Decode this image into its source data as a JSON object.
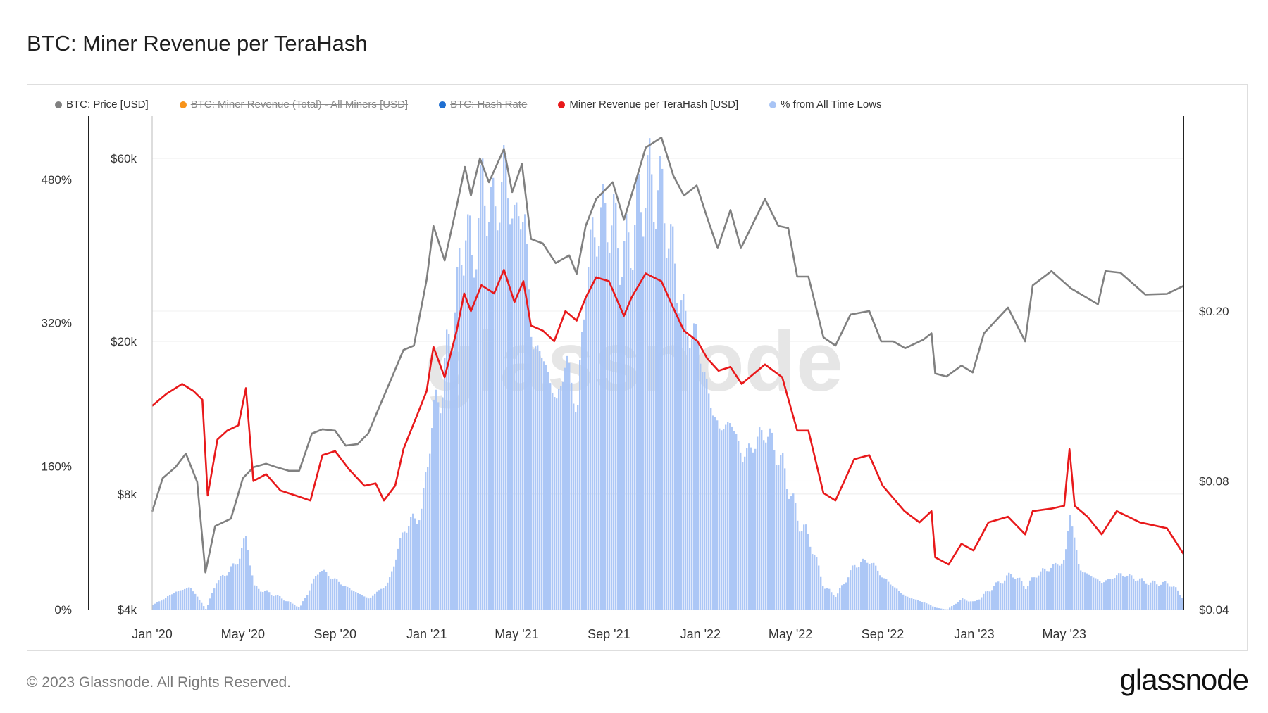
{
  "title": "BTC: Miner Revenue per TeraHash",
  "footer": "© 2023 Glassnode. All Rights Reserved.",
  "brand": "glassnode",
  "watermark": "glassnode",
  "legend": [
    {
      "label": "BTC: Price [USD]",
      "color": "#808080",
      "active": true
    },
    {
      "label": "BTC: Miner Revenue (Total) - All Miners [USD]",
      "color": "#f7931a",
      "active": false
    },
    {
      "label": "BTC: Hash Rate",
      "color": "#1f6fd1",
      "active": false
    },
    {
      "label": "Miner Revenue per TeraHash [USD]",
      "color": "#e8191b",
      "active": true
    },
    {
      "label": "% from All Time Lows",
      "color": "#a8c4f5",
      "active": true
    }
  ],
  "chart_data": {
    "type": "line",
    "title": "BTC: Miner Revenue per TeraHash",
    "x_range": [
      "2020-01-01",
      "2023-10-07"
    ],
    "x_ticks": [
      {
        "date": "2020-01-01",
        "label": "Jan '20"
      },
      {
        "date": "2020-05-01",
        "label": "May '20"
      },
      {
        "date": "2020-09-01",
        "label": "Sep '20"
      },
      {
        "date": "2021-01-01",
        "label": "Jan '21"
      },
      {
        "date": "2021-05-01",
        "label": "May '21"
      },
      {
        "date": "2021-09-01",
        "label": "Sep '21"
      },
      {
        "date": "2022-01-01",
        "label": "Jan '22"
      },
      {
        "date": "2022-05-01",
        "label": "May '22"
      },
      {
        "date": "2022-09-01",
        "label": "Sep '22"
      },
      {
        "date": "2023-01-01",
        "label": "Jan '23"
      },
      {
        "date": "2023-05-01",
        "label": "May '23"
      }
    ],
    "y_axes": {
      "pct": {
        "range": [
          0,
          480
        ],
        "scale": "linear",
        "ticks": [
          {
            "v": 0,
            "label": "0%"
          },
          {
            "v": 160,
            "label": "160%"
          },
          {
            "v": 320,
            "label": "320%"
          },
          {
            "v": 480,
            "label": "480%"
          }
        ]
      },
      "price": {
        "range": [
          4000,
          60000
        ],
        "scale": "log",
        "ticks": [
          {
            "v": 4000,
            "label": "$4k"
          },
          {
            "v": 8000,
            "label": "$8k"
          },
          {
            "v": 20000,
            "label": "$20k"
          },
          {
            "v": 60000,
            "label": "$60k"
          }
        ]
      },
      "revenue": {
        "range": [
          0.04,
          0.2
        ],
        "scale": "log",
        "ticks": [
          {
            "v": 0.04,
            "label": "$0.04"
          },
          {
            "v": 0.08,
            "label": "$0.08"
          },
          {
            "v": 0.2,
            "label": "$0.20"
          }
        ]
      }
    },
    "series": [
      {
        "name": "BTC: Price [USD]",
        "axis": "price",
        "color": "#808080",
        "kind": "line",
        "points": [
          [
            "2020-01-01",
            7200
          ],
          [
            "2020-01-15",
            8800
          ],
          [
            "2020-02-01",
            9400
          ],
          [
            "2020-02-15",
            10200
          ],
          [
            "2020-03-01",
            8600
          ],
          [
            "2020-03-12",
            5000
          ],
          [
            "2020-03-25",
            6600
          ],
          [
            "2020-04-15",
            6900
          ],
          [
            "2020-05-01",
            8800
          ],
          [
            "2020-05-15",
            9400
          ],
          [
            "2020-06-01",
            9600
          ],
          [
            "2020-06-15",
            9400
          ],
          [
            "2020-07-01",
            9200
          ],
          [
            "2020-07-15",
            9200
          ],
          [
            "2020-08-01",
            11500
          ],
          [
            "2020-08-15",
            11800
          ],
          [
            "2020-09-01",
            11700
          ],
          [
            "2020-09-15",
            10700
          ],
          [
            "2020-10-01",
            10800
          ],
          [
            "2020-10-15",
            11500
          ],
          [
            "2020-11-01",
            13800
          ],
          [
            "2020-11-15",
            16000
          ],
          [
            "2020-12-01",
            19000
          ],
          [
            "2020-12-15",
            19500
          ],
          [
            "2021-01-01",
            29000
          ],
          [
            "2021-01-10",
            40000
          ],
          [
            "2021-01-25",
            32500
          ],
          [
            "2021-02-10",
            45000
          ],
          [
            "2021-02-21",
            57000
          ],
          [
            "2021-03-01",
            48000
          ],
          [
            "2021-03-13",
            60000
          ],
          [
            "2021-03-25",
            52000
          ],
          [
            "2021-04-14",
            63500
          ],
          [
            "2021-04-25",
            49000
          ],
          [
            "2021-05-08",
            58000
          ],
          [
            "2021-05-20",
            37000
          ],
          [
            "2021-06-05",
            36000
          ],
          [
            "2021-06-22",
            32000
          ],
          [
            "2021-07-10",
            33500
          ],
          [
            "2021-07-20",
            30000
          ],
          [
            "2021-08-01",
            40000
          ],
          [
            "2021-08-15",
            47000
          ],
          [
            "2021-09-06",
            52000
          ],
          [
            "2021-09-21",
            41500
          ],
          [
            "2021-10-05",
            51000
          ],
          [
            "2021-10-20",
            64000
          ],
          [
            "2021-11-10",
            68000
          ],
          [
            "2021-11-26",
            54000
          ],
          [
            "2021-12-10",
            48000
          ],
          [
            "2021-12-27",
            51000
          ],
          [
            "2022-01-10",
            42000
          ],
          [
            "2022-01-24",
            35000
          ],
          [
            "2022-02-10",
            44000
          ],
          [
            "2022-02-24",
            35000
          ],
          [
            "2022-03-28",
            47000
          ],
          [
            "2022-04-15",
            40000
          ],
          [
            "2022-04-28",
            39500
          ],
          [
            "2022-05-10",
            29500
          ],
          [
            "2022-05-25",
            29500
          ],
          [
            "2022-06-14",
            20500
          ],
          [
            "2022-06-30",
            19500
          ],
          [
            "2022-07-20",
            23500
          ],
          [
            "2022-08-14",
            24000
          ],
          [
            "2022-08-30",
            20000
          ],
          [
            "2022-09-15",
            20000
          ],
          [
            "2022-10-01",
            19200
          ],
          [
            "2022-10-25",
            20200
          ],
          [
            "2022-11-05",
            21000
          ],
          [
            "2022-11-10",
            16500
          ],
          [
            "2022-11-25",
            16200
          ],
          [
            "2022-12-15",
            17300
          ],
          [
            "2022-12-30",
            16600
          ],
          [
            "2023-01-14",
            21000
          ],
          [
            "2023-02-15",
            24500
          ],
          [
            "2023-03-10",
            20000
          ],
          [
            "2023-03-20",
            28000
          ],
          [
            "2023-04-14",
            30500
          ],
          [
            "2023-05-10",
            27500
          ],
          [
            "2023-06-15",
            25000
          ],
          [
            "2023-06-25",
            30500
          ],
          [
            "2023-07-15",
            30200
          ],
          [
            "2023-08-17",
            26500
          ],
          [
            "2023-09-15",
            26600
          ],
          [
            "2023-10-07",
            27900
          ]
        ]
      },
      {
        "name": "Miner Revenue per TeraHash [USD]",
        "axis": "revenue",
        "color": "#e8191b",
        "kind": "line",
        "points": [
          [
            "2020-01-01",
            0.12
          ],
          [
            "2020-01-20",
            0.128
          ],
          [
            "2020-02-10",
            0.135
          ],
          [
            "2020-02-25",
            0.13
          ],
          [
            "2020-03-08",
            0.124
          ],
          [
            "2020-03-15",
            0.074
          ],
          [
            "2020-03-28",
            0.1
          ],
          [
            "2020-04-10",
            0.105
          ],
          [
            "2020-04-25",
            0.108
          ],
          [
            "2020-05-05",
            0.132
          ],
          [
            "2020-05-15",
            0.08
          ],
          [
            "2020-06-01",
            0.083
          ],
          [
            "2020-06-20",
            0.076
          ],
          [
            "2020-07-10",
            0.074
          ],
          [
            "2020-07-30",
            0.072
          ],
          [
            "2020-08-15",
            0.092
          ],
          [
            "2020-09-01",
            0.094
          ],
          [
            "2020-09-20",
            0.085
          ],
          [
            "2020-10-10",
            0.078
          ],
          [
            "2020-10-25",
            0.079
          ],
          [
            "2020-11-05",
            0.072
          ],
          [
            "2020-11-20",
            0.078
          ],
          [
            "2020-12-01",
            0.095
          ],
          [
            "2020-12-20",
            0.115
          ],
          [
            "2021-01-01",
            0.13
          ],
          [
            "2021-01-10",
            0.165
          ],
          [
            "2021-01-25",
            0.14
          ],
          [
            "2021-02-10",
            0.18
          ],
          [
            "2021-02-20",
            0.22
          ],
          [
            "2021-03-01",
            0.2
          ],
          [
            "2021-03-15",
            0.23
          ],
          [
            "2021-04-01",
            0.22
          ],
          [
            "2021-04-14",
            0.25
          ],
          [
            "2021-04-28",
            0.21
          ],
          [
            "2021-05-10",
            0.235
          ],
          [
            "2021-05-20",
            0.185
          ],
          [
            "2021-06-05",
            0.18
          ],
          [
            "2021-06-20",
            0.17
          ],
          [
            "2021-07-05",
            0.2
          ],
          [
            "2021-07-20",
            0.19
          ],
          [
            "2021-08-01",
            0.215
          ],
          [
            "2021-08-15",
            0.24
          ],
          [
            "2021-09-01",
            0.235
          ],
          [
            "2021-09-21",
            0.195
          ],
          [
            "2021-10-01",
            0.215
          ],
          [
            "2021-10-20",
            0.245
          ],
          [
            "2021-11-10",
            0.235
          ],
          [
            "2021-11-25",
            0.205
          ],
          [
            "2021-12-10",
            0.18
          ],
          [
            "2021-12-28",
            0.17
          ],
          [
            "2022-01-10",
            0.155
          ],
          [
            "2022-01-25",
            0.145
          ],
          [
            "2022-02-10",
            0.148
          ],
          [
            "2022-02-25",
            0.135
          ],
          [
            "2022-03-28",
            0.15
          ],
          [
            "2022-04-20",
            0.14
          ],
          [
            "2022-05-10",
            0.105
          ],
          [
            "2022-05-25",
            0.105
          ],
          [
            "2022-06-14",
            0.075
          ],
          [
            "2022-06-30",
            0.072
          ],
          [
            "2022-07-25",
            0.09
          ],
          [
            "2022-08-14",
            0.092
          ],
          [
            "2022-09-01",
            0.078
          ],
          [
            "2022-09-30",
            0.068
          ],
          [
            "2022-10-20",
            0.064
          ],
          [
            "2022-11-05",
            0.068
          ],
          [
            "2022-11-10",
            0.053
          ],
          [
            "2022-11-28",
            0.051
          ],
          [
            "2022-12-15",
            0.057
          ],
          [
            "2022-12-31",
            0.055
          ],
          [
            "2023-01-20",
            0.064
          ],
          [
            "2023-02-15",
            0.066
          ],
          [
            "2023-03-10",
            0.06
          ],
          [
            "2023-03-20",
            0.068
          ],
          [
            "2023-04-15",
            0.069
          ],
          [
            "2023-05-01",
            0.07
          ],
          [
            "2023-05-08",
            0.095
          ],
          [
            "2023-05-15",
            0.07
          ],
          [
            "2023-06-01",
            0.066
          ],
          [
            "2023-06-20",
            0.06
          ],
          [
            "2023-07-10",
            0.068
          ],
          [
            "2023-08-10",
            0.064
          ],
          [
            "2023-09-15",
            0.062
          ],
          [
            "2023-10-07",
            0.054
          ]
        ]
      },
      {
        "name": "% from All Time Lows",
        "axis": "pct",
        "color": "#a8c4f5",
        "kind": "area",
        "points": [
          [
            "2020-01-01",
            5
          ],
          [
            "2020-02-01",
            20
          ],
          [
            "2020-02-20",
            25
          ],
          [
            "2020-03-12",
            0
          ],
          [
            "2020-03-25",
            30
          ],
          [
            "2020-04-20",
            50
          ],
          [
            "2020-05-05",
            80
          ],
          [
            "2020-05-15",
            25
          ],
          [
            "2020-06-15",
            15
          ],
          [
            "2020-07-15",
            2
          ],
          [
            "2020-08-10",
            45
          ],
          [
            "2020-09-15",
            25
          ],
          [
            "2020-10-15",
            12
          ],
          [
            "2020-11-10",
            30
          ],
          [
            "2020-12-01",
            90
          ],
          [
            "2020-12-25",
            110
          ],
          [
            "2021-01-05",
            200
          ],
          [
            "2021-01-20",
            250
          ],
          [
            "2021-02-10",
            350
          ],
          [
            "2021-02-21",
            440
          ],
          [
            "2021-03-01",
            380
          ],
          [
            "2021-03-15",
            470
          ],
          [
            "2021-04-01",
            440
          ],
          [
            "2021-04-14",
            490
          ],
          [
            "2021-04-28",
            430
          ],
          [
            "2021-05-10",
            450
          ],
          [
            "2021-05-20",
            300
          ],
          [
            "2021-06-05",
            280
          ],
          [
            "2021-06-22",
            230
          ],
          [
            "2021-07-05",
            280
          ],
          [
            "2021-07-20",
            220
          ],
          [
            "2021-08-01",
            380
          ],
          [
            "2021-08-15",
            430
          ],
          [
            "2021-09-01",
            440
          ],
          [
            "2021-09-20",
            390
          ],
          [
            "2021-10-01",
            420
          ],
          [
            "2021-10-20",
            480
          ],
          [
            "2021-11-10",
            460
          ],
          [
            "2021-11-25",
            390
          ],
          [
            "2021-12-10",
            320
          ],
          [
            "2021-12-28",
            300
          ],
          [
            "2022-01-10",
            240
          ],
          [
            "2022-01-25",
            200
          ],
          [
            "2022-02-10",
            210
          ],
          [
            "2022-02-25",
            170
          ],
          [
            "2022-03-28",
            200
          ],
          [
            "2022-04-20",
            160
          ],
          [
            "2022-05-10",
            100
          ],
          [
            "2022-05-25",
            80
          ],
          [
            "2022-06-14",
            25
          ],
          [
            "2022-06-30",
            15
          ],
          [
            "2022-07-25",
            50
          ],
          [
            "2022-08-14",
            55
          ],
          [
            "2022-09-01",
            35
          ],
          [
            "2022-09-30",
            15
          ],
          [
            "2022-10-25",
            8
          ],
          [
            "2022-11-10",
            2
          ],
          [
            "2022-11-25",
            0
          ],
          [
            "2022-12-15",
            12
          ],
          [
            "2022-12-31",
            8
          ],
          [
            "2023-01-25",
            25
          ],
          [
            "2023-02-20",
            40
          ],
          [
            "2023-03-10",
            25
          ],
          [
            "2023-03-25",
            40
          ],
          [
            "2023-04-20",
            50
          ],
          [
            "2023-05-01",
            55
          ],
          [
            "2023-05-08",
            110
          ],
          [
            "2023-05-20",
            45
          ],
          [
            "2023-06-20",
            30
          ],
          [
            "2023-07-15",
            40
          ],
          [
            "2023-08-20",
            30
          ],
          [
            "2023-09-20",
            28
          ],
          [
            "2023-10-07",
            12
          ]
        ]
      }
    ],
    "grid": true,
    "legend_position": "top-left"
  }
}
